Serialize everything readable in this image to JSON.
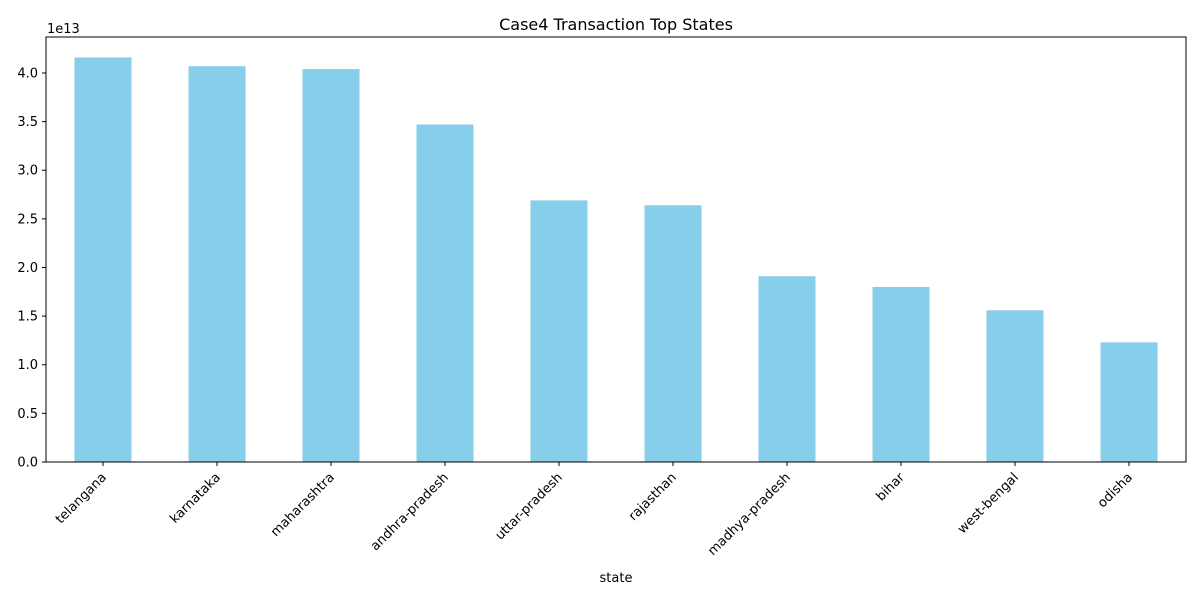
{
  "chart_data": {
    "type": "bar",
    "title": "Case4 Transaction Top States",
    "xlabel": "state",
    "ylabel": "",
    "y_offset_label": "1e13",
    "y_scale": 10000000000000.0,
    "categories": [
      "telangana",
      "karnataka",
      "maharashtra",
      "andhra-pradesh",
      "uttar-pradesh",
      "rajasthan",
      "madhya-pradesh",
      "bihar",
      "west-bengal",
      "odisha"
    ],
    "values": [
      41600000000000,
      40700000000000,
      40400000000000,
      34700000000000,
      26900000000000,
      26400000000000,
      19100000000000,
      18000000000000,
      15600000000000,
      12300000000000
    ],
    "ylim": [
      0,
      43700000000000
    ],
    "yticks": [
      0.0,
      0.5,
      1.0,
      1.5,
      2.0,
      2.5,
      3.0,
      3.5,
      4.0
    ],
    "ytick_labels": [
      "0.0",
      "0.5",
      "1.0",
      "1.5",
      "2.0",
      "2.5",
      "3.0",
      "3.5",
      "4.0"
    ],
    "bar_color": "#87ceeb",
    "grid": false,
    "legend": "none"
  }
}
